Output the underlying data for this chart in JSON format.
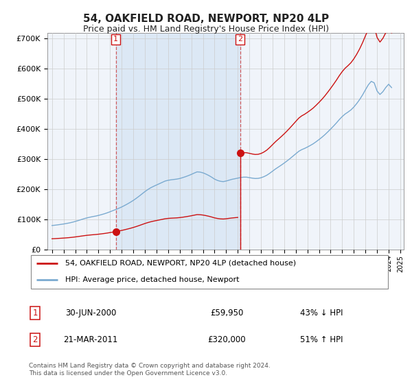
{
  "title": "54, OAKFIELD ROAD, NEWPORT, NP20 4LP",
  "subtitle": "Price paid vs. HM Land Registry's House Price Index (HPI)",
  "title_fontsize": 11,
  "subtitle_fontsize": 9,
  "ylim": [
    0,
    720000
  ],
  "yticks": [
    0,
    100000,
    200000,
    300000,
    400000,
    500000,
    600000,
    700000
  ],
  "ytick_labels": [
    "£0",
    "£100K",
    "£200K",
    "£300K",
    "£400K",
    "£500K",
    "£600K",
    "£700K"
  ],
  "background_color": "#ffffff",
  "plot_bg_color": "#f0f4fa",
  "shade_color": "#dce8f5",
  "grid_color": "#cccccc",
  "hpi_color": "#7aaad0",
  "property_color": "#cc1111",
  "vline_color": "#cc4444",
  "sale1_date": 2000.5,
  "sale1_price": 59950,
  "sale2_date": 2011.2,
  "sale2_price": 320000,
  "legend_label_property": "54, OAKFIELD ROAD, NEWPORT, NP20 4LP (detached house)",
  "legend_label_hpi": "HPI: Average price, detached house, Newport",
  "footnote": "Contains HM Land Registry data © Crown copyright and database right 2024.\nThis data is licensed under the Open Government Licence v3.0.",
  "table_row1": [
    "1",
    "30-JUN-2000",
    "£59,950",
    "43% ↓ HPI"
  ],
  "table_row2": [
    "2",
    "21-MAR-2011",
    "£320,000",
    "51% ↑ HPI"
  ],
  "hpi_index": [
    100.0,
    101.2,
    102.8,
    104.5,
    106.3,
    108.4,
    110.7,
    113.5,
    116.8,
    120.4,
    124.2,
    128.1,
    131.5,
    134.3,
    136.8,
    139.0,
    141.8,
    145.0,
    148.5,
    152.5,
    157.0,
    161.8,
    166.5,
    171.5,
    176.8,
    183.0,
    189.5,
    196.5,
    204.0,
    212.5,
    221.5,
    231.0,
    240.5,
    249.0,
    256.5,
    262.5,
    268.0,
    273.5,
    279.0,
    284.5,
    287.5,
    289.5,
    291.0,
    292.5,
    295.0,
    298.5,
    302.5,
    307.0,
    312.0,
    317.5,
    322.5,
    321.5,
    318.5,
    313.5,
    307.5,
    300.5,
    292.5,
    287.0,
    283.5,
    282.0,
    284.5,
    288.0,
    291.5,
    294.0,
    296.5,
    299.0,
    300.5,
    300.5,
    298.5,
    296.5,
    295.0,
    295.5,
    298.0,
    302.5,
    308.5,
    316.5,
    325.5,
    334.5,
    342.5,
    350.5,
    359.0,
    368.0,
    377.5,
    387.5,
    397.5,
    407.5,
    414.5,
    419.5,
    425.5,
    432.0,
    439.0,
    447.5,
    456.5,
    466.0,
    476.5,
    488.0,
    500.0,
    512.5,
    525.5,
    539.5,
    552.0,
    562.5,
    570.5,
    579.5,
    591.5,
    606.0,
    622.5,
    641.5,
    663.0,
    683.5,
    698.0,
    692.0,
    658.0,
    643.5,
    655.0,
    672.5,
    686.0,
    672.0
  ],
  "xlim_start": 1994.6,
  "xlim_end": 2025.3
}
